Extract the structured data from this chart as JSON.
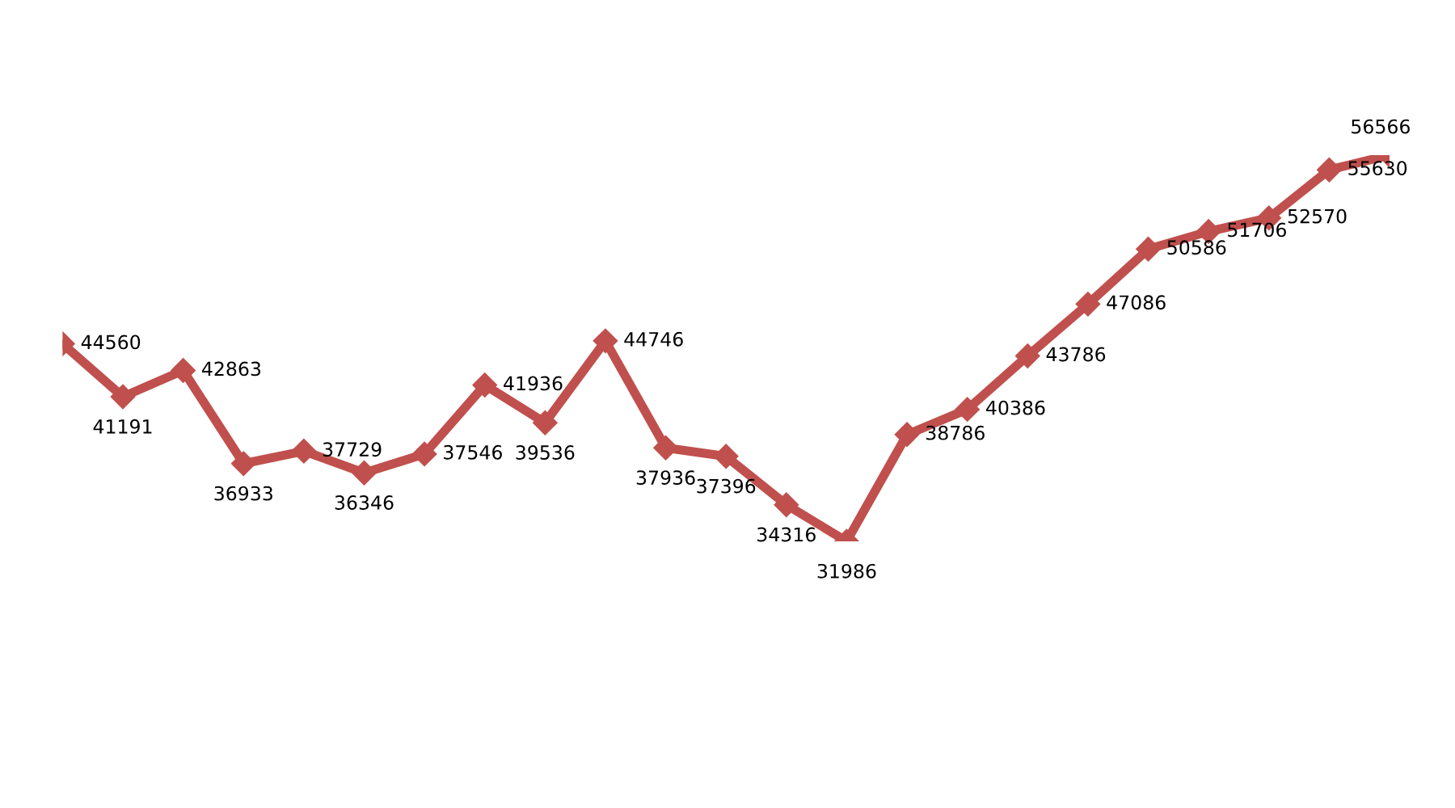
{
  "chart_data": {
    "type": "line",
    "categories": [
      null,
      null,
      null,
      null,
      null,
      null,
      null,
      null,
      null,
      null,
      null,
      null,
      null,
      null,
      null,
      null,
      null,
      null,
      null,
      null,
      null,
      null,
      null
    ],
    "series": [
      {
        "color": "#c0504d",
        "values": [
          44560,
          41191,
          42863,
          36933,
          37729,
          36346,
          37546,
          41936,
          39536,
          44746,
          37936,
          37396,
          34316,
          31986,
          38786,
          40386,
          43786,
          47086,
          50586,
          51706,
          52570,
          55630,
          56566
        ]
      }
    ],
    "data_labels": true,
    "marker": "diamond",
    "line_style": "solid",
    "grid": false,
    "legend": false,
    "tick_labels": false
  }
}
